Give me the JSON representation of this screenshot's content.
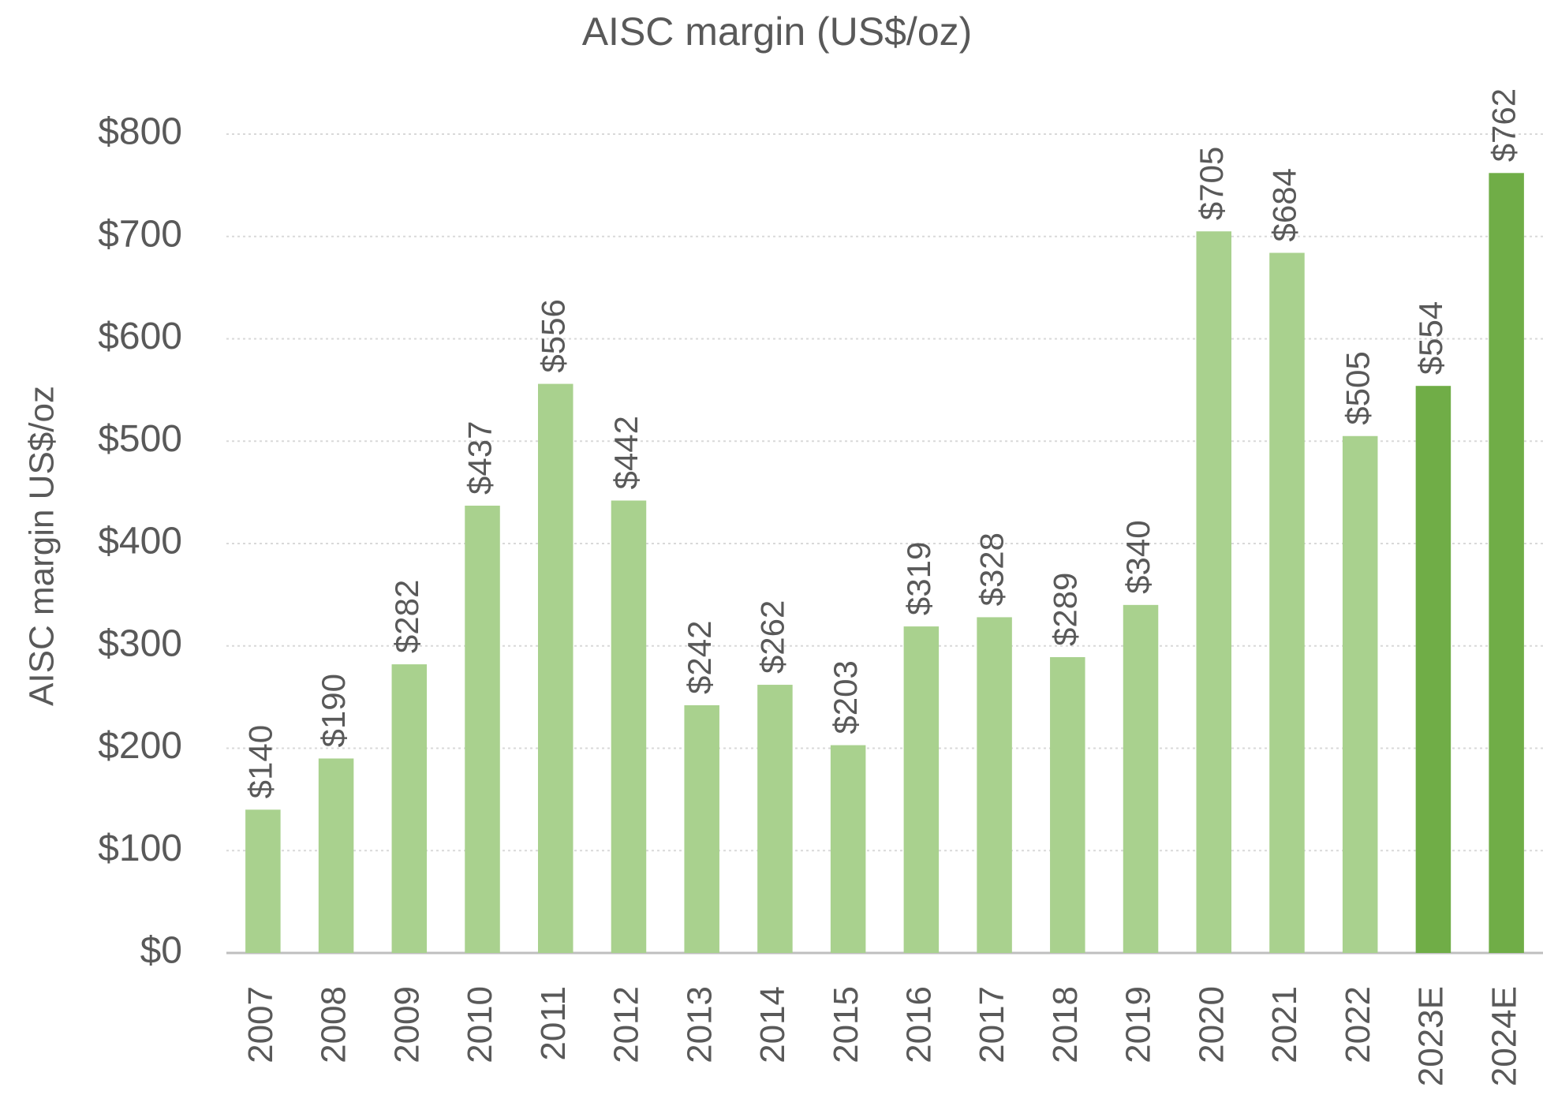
{
  "chart_data": {
    "type": "bar",
    "title": "AISC margin (US$/oz)",
    "y_label": "AISC margin US$/oz",
    "categories": [
      "2007",
      "2008",
      "2009",
      "2010",
      "2011",
      "2012",
      "2013",
      "2014",
      "2015",
      "2016",
      "2017",
      "2018",
      "2019",
      "2020",
      "2021",
      "2022",
      "2023E",
      "2024E"
    ],
    "values": [
      140,
      190,
      282,
      437,
      556,
      442,
      242,
      262,
      203,
      319,
      328,
      289,
      340,
      705,
      684,
      505,
      554,
      762
    ],
    "value_labels": [
      "$140",
      "$190",
      "$282",
      "$437",
      "$556",
      "$442",
      "$242",
      "$262",
      "$203",
      "$319",
      "$328",
      "$289",
      "$340",
      "$705",
      "$684",
      "$505",
      "$554",
      "$762"
    ],
    "colors": [
      "#a9d18e",
      "#a9d18e",
      "#a9d18e",
      "#a9d18e",
      "#a9d18e",
      "#a9d18e",
      "#a9d18e",
      "#a9d18e",
      "#a9d18e",
      "#a9d18e",
      "#a9d18e",
      "#a9d18e",
      "#a9d18e",
      "#a9d18e",
      "#a9d18e",
      "#a9d18e",
      "#70ad47",
      "#70ad47"
    ],
    "ylim": [
      0,
      800
    ],
    "yticks": [
      {
        "value": 0,
        "label": "$0"
      },
      {
        "value": 100,
        "label": "$100"
      },
      {
        "value": 200,
        "label": "$200"
      },
      {
        "value": 300,
        "label": "$300"
      },
      {
        "value": 400,
        "label": "$400"
      },
      {
        "value": 500,
        "label": "$500"
      },
      {
        "value": 600,
        "label": "$600"
      },
      {
        "value": 700,
        "label": "$700"
      },
      {
        "value": 800,
        "label": "$800"
      }
    ],
    "grid": true
  }
}
